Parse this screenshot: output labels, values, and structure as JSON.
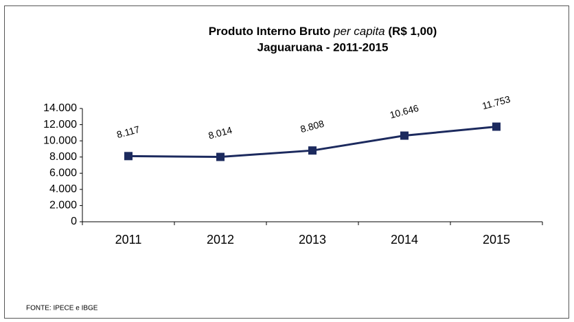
{
  "chart_data": {
    "type": "line",
    "title": [
      "Produto Interno Bruto",
      "per capita",
      "(R$ 1,00)"
    ],
    "subtitle": "Jaguaruana - 2011-2015",
    "categories": [
      "2011",
      "2012",
      "2013",
      "2014",
      "2015"
    ],
    "series": [
      {
        "name": "PIB per capita",
        "color": "#1c2a5e",
        "values": [
          8117,
          8014,
          8808,
          10646,
          11753
        ],
        "value_labels": [
          "8.117",
          "8.014",
          "8.808",
          "10.646",
          "11.753"
        ]
      }
    ],
    "ylim": [
      0,
      14000
    ],
    "yticks": [
      0,
      {
        "value": 2000,
        "label": "2.000"
      },
      {
        "value": 4000,
        "label": "4.000"
      },
      {
        "value": 6000,
        "label": "6.000"
      },
      {
        "value": 8000,
        "label": "8.000"
      },
      {
        "value": 10000,
        "label": "10.000"
      },
      {
        "value": 12000,
        "label": "12.000"
      },
      {
        "value": 14000,
        "label": "14.000"
      }
    ],
    "source": "FONTE: IPECE e IBGE"
  }
}
